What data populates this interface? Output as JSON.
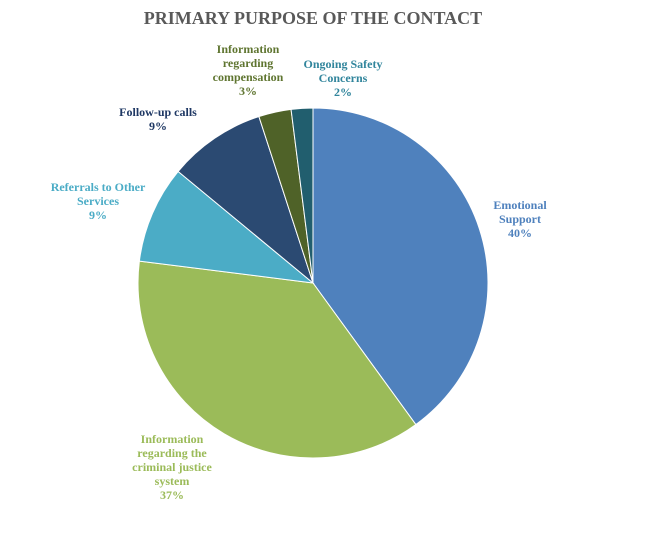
{
  "chart_data": {
    "type": "pie",
    "title": "PRIMARY PURPOSE OF THE CONTACT",
    "categories": [
      "Emotional Support",
      "Information regarding the criminal justice system",
      "Referrals to Other Services",
      "Follow-up calls",
      "Information regarding compensation",
      "Ongoing Safety Concerns"
    ],
    "values": [
      40,
      37,
      9,
      9,
      3,
      2
    ],
    "value_labels": [
      "40%",
      "37%",
      "9%",
      "9%",
      "3%",
      "2%"
    ],
    "colors": [
      "#4f81bd",
      "#9bbb59",
      "#4bacc6",
      "#2b4a72",
      "#4f6228",
      "#215e6e"
    ],
    "label_colors": [
      "#4f81bd",
      "#9bbb59",
      "#4bacc6",
      "#1f3864",
      "#5f7530",
      "#31859c"
    ]
  }
}
